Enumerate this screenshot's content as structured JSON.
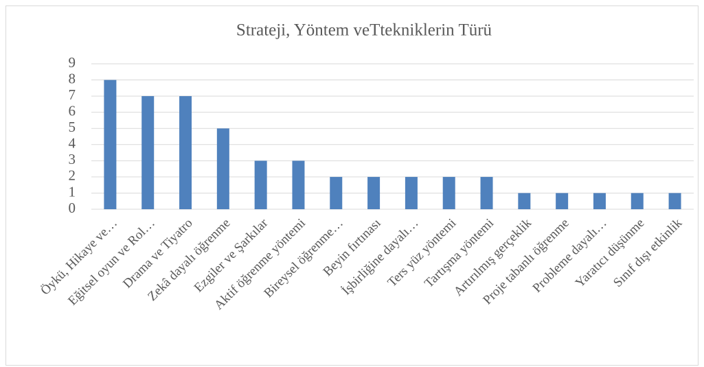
{
  "chart_data": {
    "type": "bar",
    "title": "Strateji, Yöntem veTteknikl­erin Türü",
    "categories": [
      "Öykü, Hikaye ve…",
      "Eğitsel oyun ve Rol…",
      "Drama ve Tiyatro",
      "Zekâ dayalı öğrenme",
      "Ezgiler ve Şarkılar",
      "Aktif öğrenme yöntemi",
      "Bireysel öğrenme…",
      "Beyin fırtınası",
      "İşbirliğine dayalı…",
      "Ters yüz yöntemi",
      "Tartışma yöntemi",
      "Artırılmış gerçeklik",
      "Proje tabanlı öğrenme",
      "Probleme dayalı…",
      "Yaratıcı düşünme",
      "Sınıf dışı etkinlik"
    ],
    "values": [
      8,
      7,
      7,
      5,
      3,
      3,
      2,
      2,
      2,
      2,
      2,
      1,
      1,
      1,
      1,
      1
    ],
    "color": "#4f81bd",
    "ylim": [
      0,
      9
    ],
    "yticks": [
      0,
      1,
      2,
      3,
      4,
      5,
      6,
      7,
      8,
      9
    ],
    "grid": true
  }
}
